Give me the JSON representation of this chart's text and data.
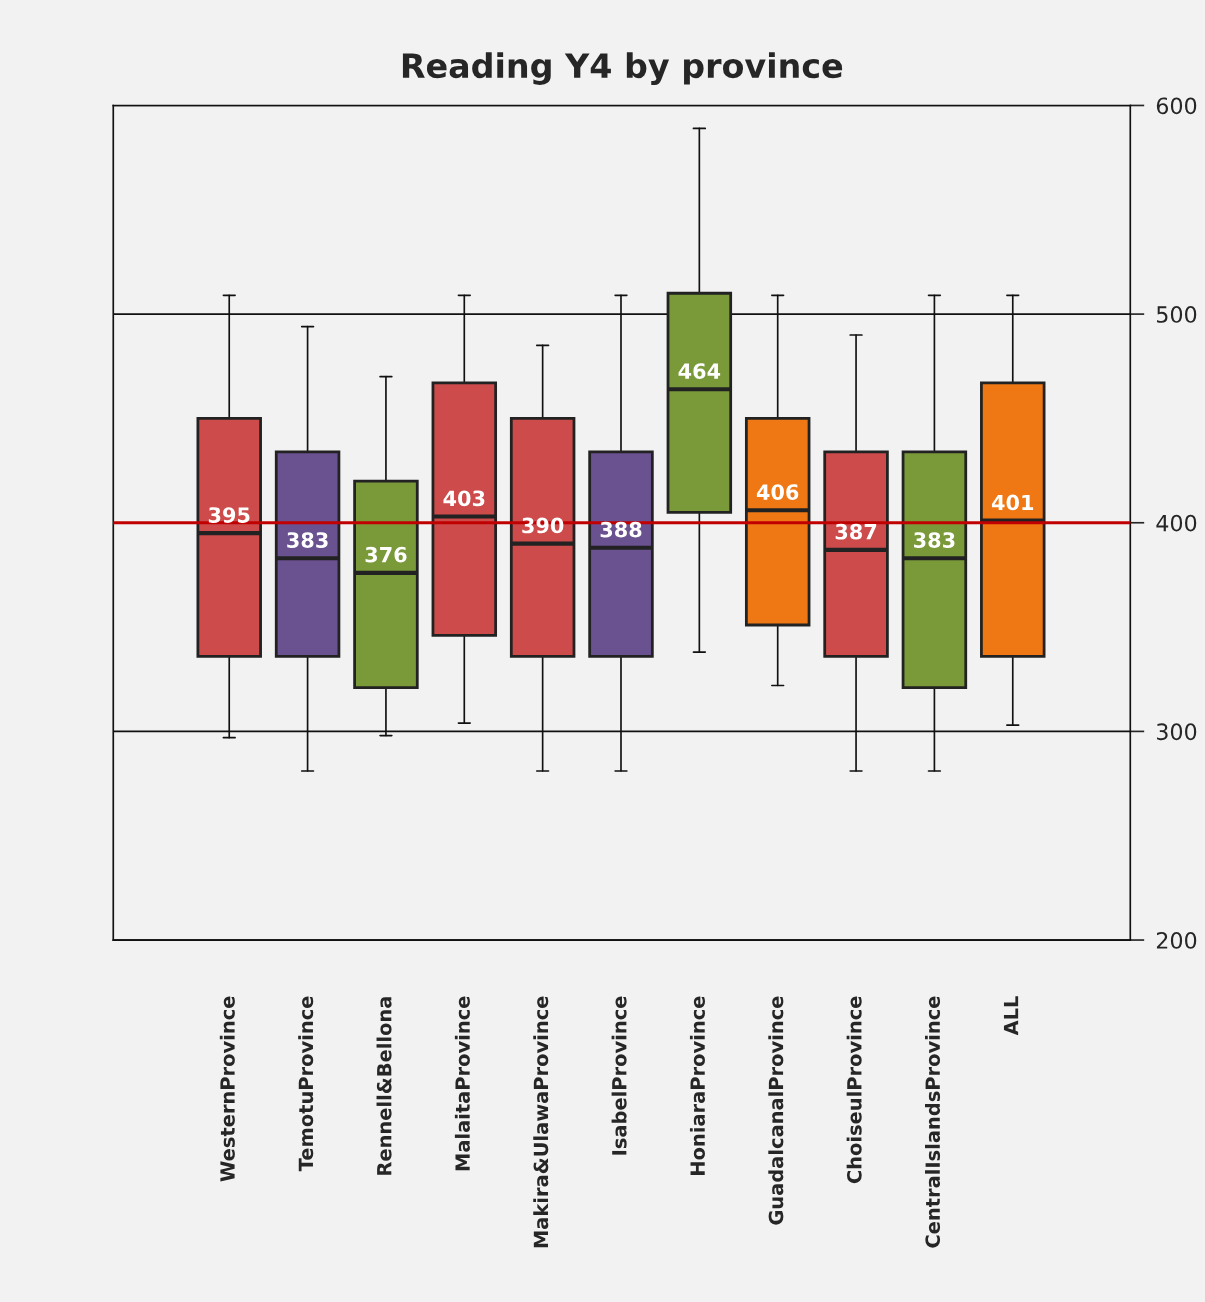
{
  "chart_data": {
    "type": "box",
    "title": "Reading Y4 by province",
    "categories": [
      "WesternProvince",
      "TemotuProvince",
      "Rennell&Bellona",
      "MalaitaProvince",
      "Makira&UlawaProvince",
      "IsabelProvince",
      "HoniaraProvince",
      "GuadalcanalProvince",
      "ChoiseulProvince",
      "CentralIslandsProvince",
      "ALL"
    ],
    "boxes": [
      {
        "low": 297,
        "q1": 336,
        "median": 395,
        "q3": 450,
        "high": 509
      },
      {
        "low": 281,
        "q1": 336,
        "median": 383,
        "q3": 434,
        "high": 494
      },
      {
        "low": 298,
        "q1": 321,
        "median": 376,
        "q3": 420,
        "high": 470
      },
      {
        "low": 304,
        "q1": 346,
        "median": 403,
        "q3": 467,
        "high": 509
      },
      {
        "low": 281,
        "q1": 336,
        "median": 390,
        "q3": 450,
        "high": 485
      },
      {
        "low": 281,
        "q1": 336,
        "median": 388,
        "q3": 434,
        "high": 509
      },
      {
        "low": 338,
        "q1": 405,
        "median": 464,
        "q3": 510,
        "high": 589
      },
      {
        "low": 322,
        "q1": 351,
        "median": 406,
        "q3": 450,
        "high": 509
      },
      {
        "low": 281,
        "q1": 336,
        "median": 387,
        "q3": 434,
        "high": 490
      },
      {
        "low": 281,
        "q1": 321,
        "median": 383,
        "q3": 434,
        "high": 509
      },
      {
        "low": 303,
        "q1": 336,
        "median": 401,
        "q3": 467,
        "high": 509
      }
    ],
    "colors": [
      "#cd4b4b",
      "#6a5190",
      "#7a9a3a",
      "#cd4b4b",
      "#cd4b4b",
      "#6a5190",
      "#7a9a3a",
      "#f07814",
      "#cd4b4b",
      "#7a9a3a",
      "#f07814"
    ],
    "value_labels": [
      "395",
      "383",
      "376",
      "403",
      "390",
      "388",
      "464",
      "406",
      "387",
      "383",
      "401"
    ],
    "ylim": [
      200,
      600
    ],
    "yticks": [
      200,
      300,
      400,
      500,
      600
    ],
    "grid": "y",
    "ref_lines": [
      {
        "axis": "y",
        "value": 400,
        "color": "#c00000"
      }
    ]
  }
}
